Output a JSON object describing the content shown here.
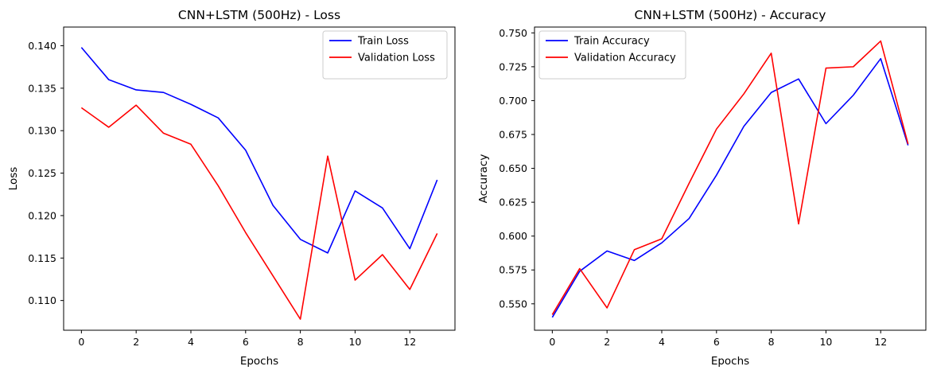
{
  "chart_data": [
    {
      "type": "line",
      "title": "CNN+LSTM (500Hz) - Loss",
      "xlabel": "Epochs",
      "ylabel": "Loss",
      "x": [
        0,
        1,
        2,
        3,
        4,
        5,
        6,
        7,
        8,
        9,
        10,
        11,
        12,
        13
      ],
      "xlim": [
        -0.65,
        13.65
      ],
      "ylim": [
        0.1065,
        0.1422
      ],
      "xticks": [
        0,
        2,
        4,
        6,
        8,
        10,
        12
      ],
      "xtick_labels": [
        "0",
        "2",
        "4",
        "6",
        "8",
        "10",
        "12"
      ],
      "yticks": [
        0.11,
        0.115,
        0.12,
        0.125,
        0.13,
        0.135,
        0.14
      ],
      "ytick_labels": [
        "0.110",
        "0.115",
        "0.120",
        "0.125",
        "0.130",
        "0.135",
        "0.140"
      ],
      "legend_position": "upper right",
      "grid": false,
      "series": [
        {
          "name": "Train Loss",
          "color": "#0000ff",
          "values": [
            0.1398,
            0.136,
            0.1348,
            0.1345,
            0.1331,
            0.1315,
            0.1277,
            0.1212,
            0.1172,
            0.1156,
            0.1229,
            0.1209,
            0.1161,
            0.1242
          ]
        },
        {
          "name": "Validation Loss",
          "color": "#ff0000",
          "values": [
            0.1327,
            0.1304,
            0.133,
            0.1297,
            0.1284,
            0.1235,
            0.118,
            0.1129,
            0.1078,
            0.127,
            0.1124,
            0.1154,
            0.1113,
            0.1179
          ]
        }
      ]
    },
    {
      "type": "line",
      "title": "CNN+LSTM (500Hz) - Accuracy",
      "xlabel": "Epochs",
      "ylabel": "Accuracy",
      "x": [
        0,
        1,
        2,
        3,
        4,
        5,
        6,
        7,
        8,
        9,
        10,
        11,
        12,
        13
      ],
      "xlim": [
        -0.65,
        13.65
      ],
      "ylim": [
        0.5305,
        0.7543
      ],
      "xticks": [
        0,
        2,
        4,
        6,
        8,
        10,
        12
      ],
      "xtick_labels": [
        "0",
        "2",
        "4",
        "6",
        "8",
        "10",
        "12"
      ],
      "yticks": [
        0.55,
        0.575,
        0.6,
        0.625,
        0.65,
        0.675,
        0.7,
        0.725,
        0.75
      ],
      "ytick_labels": [
        "0.550",
        "0.575",
        "0.600",
        "0.625",
        "0.650",
        "0.675",
        "0.700",
        "0.725",
        "0.750"
      ],
      "legend_position": "upper left",
      "grid": false,
      "series": [
        {
          "name": "Train Accuracy",
          "color": "#0000ff",
          "values": [
            0.54,
            0.574,
            0.589,
            0.582,
            0.595,
            0.613,
            0.645,
            0.681,
            0.706,
            0.716,
            0.683,
            0.704,
            0.731,
            0.667
          ]
        },
        {
          "name": "Validation Accuracy",
          "color": "#ff0000",
          "values": [
            0.542,
            0.576,
            0.547,
            0.59,
            0.598,
            0.639,
            0.679,
            0.705,
            0.735,
            0.609,
            0.724,
            0.725,
            0.744,
            0.668
          ]
        }
      ]
    }
  ]
}
